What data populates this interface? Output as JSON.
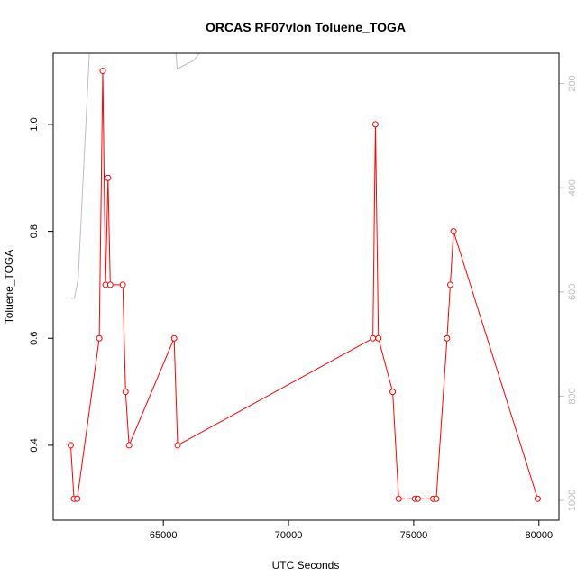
{
  "chart_data": {
    "type": "line",
    "title": "ORCAS RF07vlon Toluene_TOGA",
    "xlabel": "UTC Seconds",
    "ylabel": "Toluene_TOGA",
    "xlim": [
      60600,
      80800
    ],
    "ylim": [
      0.26,
      1.133
    ],
    "x_ticks": [
      65000,
      70000,
      75000,
      80000
    ],
    "y_ticks": [
      0.4,
      0.6,
      0.8,
      1.0
    ],
    "series": [
      {
        "color": "#ff0000",
        "marker": "open-circle",
        "x": [
          61300,
          61430,
          61560,
          62440,
          62580,
          62690,
          62790,
          62880,
          63380,
          63490,
          63630,
          65430,
          65570,
          73370,
          73470,
          73590,
          74160,
          74400,
          75050,
          75160,
          75780,
          75900,
          76330,
          76460,
          76590,
          79950
        ],
        "y": [
          0.4,
          0.3,
          0.3,
          0.6,
          1.1,
          0.7,
          0.9,
          0.7,
          0.7,
          0.5,
          0.4,
          0.6,
          0.4,
          0.6,
          1.0,
          0.6,
          0.5,
          0.3,
          0.3,
          0.3,
          0.3,
          0.3,
          0.6,
          0.7,
          0.8,
          0.3
        ],
        "gaps_dashed": [
          [
            1,
            2
          ],
          [
            17,
            18
          ],
          [
            18,
            19
          ],
          [
            19,
            20
          ],
          [
            20,
            21
          ]
        ]
      }
    ],
    "secondary_axis": {
      "side": "right",
      "color": "#bdbdbd",
      "ylim": [
        1038,
        142
      ],
      "ticks": [
        200,
        400,
        600,
        800,
        1000
      ],
      "series": [
        {
          "x": [
            61300,
            61450,
            61600,
            62100,
            62700,
            63300,
            63900,
            64500,
            65200,
            65500,
            65550,
            66200,
            67000
          ],
          "y": [
            612,
            612,
            573,
            88,
            -300,
            -350,
            -300,
            -150,
            50,
            140,
            172,
            156,
            110
          ]
        }
      ]
    }
  }
}
